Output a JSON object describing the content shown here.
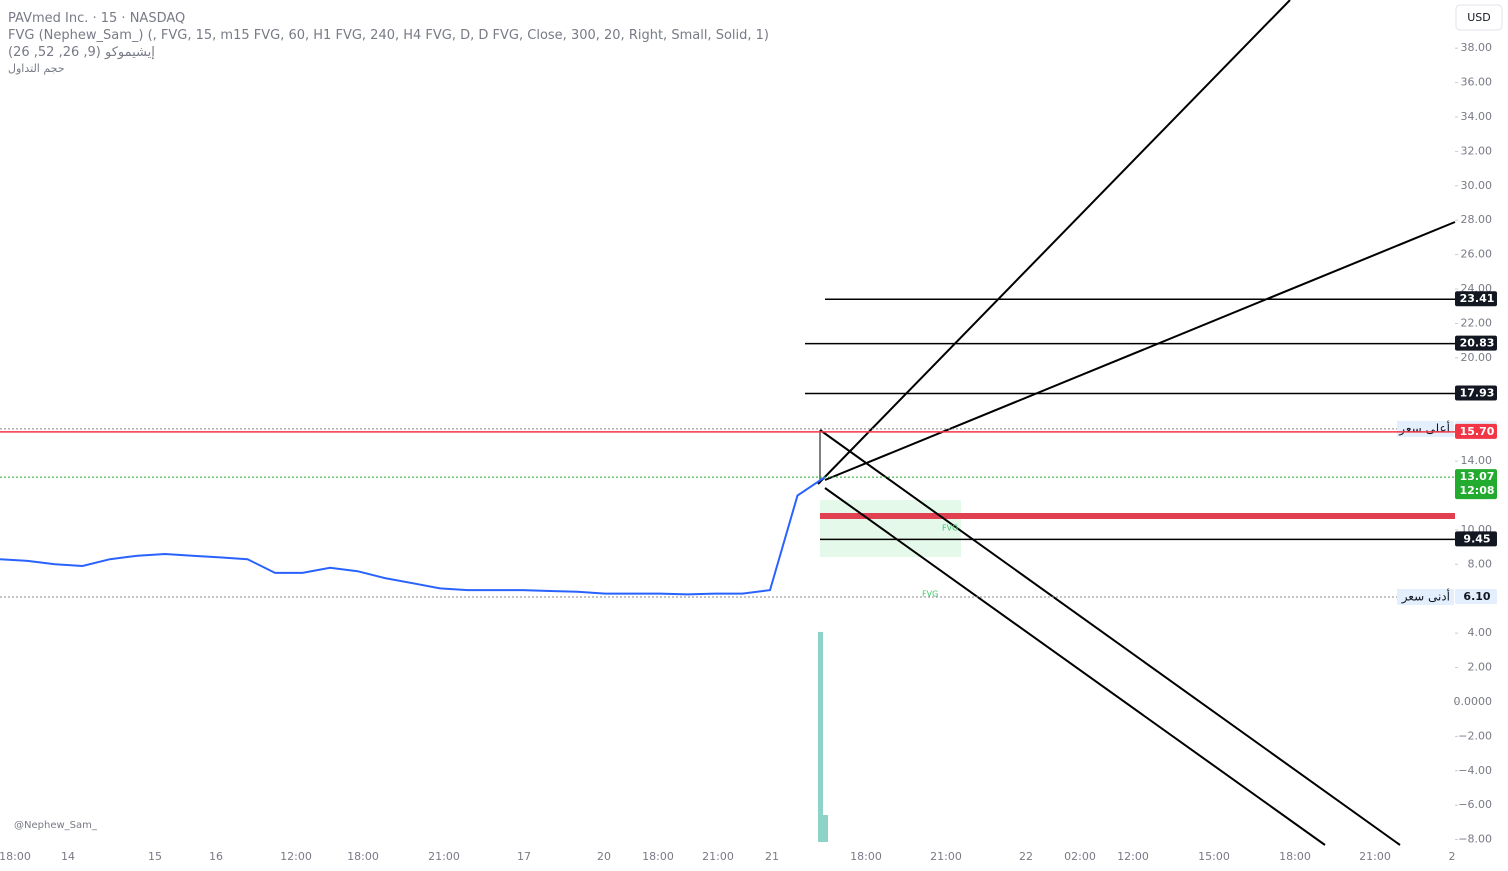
{
  "header": {
    "symbol": "PAVmed Inc. · 15 · NASDAQ",
    "indicator1": "FVG (Nephew_Sam_) (, FVG, 15, m15 FVG, 60, H1 FVG, 240, H4 FVG, D, D FVG, Close, 300, 20, Right, Small, Solid, 1)",
    "indicator2": "إيشيموكو (9, 26, 52, 26)",
    "indicator3": "حجم التداول"
  },
  "currency": "USD",
  "watermark": "@Nephew_Sam_",
  "fvg_labels": [
    "FVG",
    "FVG"
  ],
  "chart_data": {
    "type": "line",
    "ylim": [
      -8.14,
      40.8
    ],
    "yticks": [
      {
        "value": 38,
        "label": "38.00"
      },
      {
        "value": 36,
        "label": "36.00"
      },
      {
        "value": 34,
        "label": "34.00"
      },
      {
        "value": 32,
        "label": "32.00"
      },
      {
        "value": 30,
        "label": "30.00"
      },
      {
        "value": 28,
        "label": "28.00"
      },
      {
        "value": 26,
        "label": "26.00"
      },
      {
        "value": 24,
        "label": "24.00"
      },
      {
        "value": 22,
        "label": "22.00"
      },
      {
        "value": 20,
        "label": "20.00"
      },
      {
        "value": 14,
        "label": "14.00"
      },
      {
        "value": 10,
        "label": "10.00"
      },
      {
        "value": 8,
        "label": "8.00"
      },
      {
        "value": 4,
        "label": "4.00"
      },
      {
        "value": 2,
        "label": "2.00"
      },
      {
        "value": 0,
        "label": "0.0000"
      },
      {
        "value": -2,
        "label": "−2.00"
      },
      {
        "value": -4,
        "label": "−4.00"
      },
      {
        "value": -6,
        "label": "−6.00"
      },
      {
        "value": -8,
        "label": "−8.00"
      }
    ],
    "x_labels": [
      "18:00",
      "14",
      "15",
      "16",
      "12:00",
      "18:00",
      "21:00",
      "17",
      "20",
      "18:00",
      "21:00",
      "21",
      "18:00",
      "21:00",
      "22",
      "02:00",
      "12:00",
      "15:00",
      "18:00",
      "21:00",
      "2"
    ],
    "series": [
      {
        "name": "Close",
        "color": "#2962ff",
        "values": [
          8.3,
          8.2,
          8.0,
          7.9,
          8.3,
          8.5,
          8.6,
          8.5,
          8.4,
          8.3,
          7.5,
          7.5,
          7.8,
          7.6,
          7.2,
          6.9,
          6.6,
          6.5,
          6.5,
          6.5,
          6.45,
          6.4,
          6.3,
          6.3,
          6.3,
          6.25,
          6.3,
          6.3,
          6.5,
          12.0,
          13.07
        ]
      }
    ],
    "volume": {
      "color": "#8dd3c7",
      "values": [
        4.07,
        -6.57
      ]
    },
    "price_markers": [
      {
        "value": 23.41,
        "color": "#131722"
      },
      {
        "value": 20.83,
        "color": "#131722"
      },
      {
        "value": 17.93,
        "color": "#131722"
      },
      {
        "value": 15.87,
        "color": "#e3effd",
        "note": "أعلى سعر"
      },
      {
        "value": 15.7,
        "label": "15.70",
        "color": "#f23645"
      },
      {
        "value": 13.07,
        "color": "#22ab2e",
        "sub": "12:08"
      },
      {
        "value": 9.45,
        "color": "#131722"
      },
      {
        "value": 6.1,
        "label": "6.10",
        "color": "#e3effd",
        "note": "أدنى سعر"
      }
    ]
  }
}
